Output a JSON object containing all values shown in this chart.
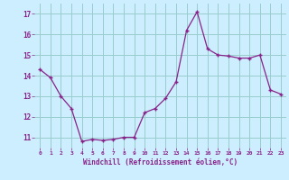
{
  "x": [
    0,
    1,
    2,
    3,
    4,
    5,
    6,
    7,
    8,
    9,
    10,
    11,
    12,
    13,
    14,
    15,
    16,
    17,
    18,
    19,
    20,
    21,
    22,
    23
  ],
  "y": [
    14.3,
    13.9,
    13.0,
    12.4,
    10.8,
    10.9,
    10.85,
    10.9,
    11.0,
    11.0,
    12.2,
    12.4,
    12.9,
    13.7,
    16.2,
    17.1,
    15.3,
    15.0,
    14.95,
    14.85,
    14.85,
    15.0,
    13.3,
    13.1
  ],
  "xlabel": "Windchill (Refroidissement éolien,°C)",
  "xlim": [
    -0.5,
    23.5
  ],
  "ylim": [
    10.5,
    17.5
  ],
  "yticks": [
    11,
    12,
    13,
    14,
    15,
    16,
    17
  ],
  "xticks": [
    0,
    1,
    2,
    3,
    4,
    5,
    6,
    7,
    8,
    9,
    10,
    11,
    12,
    13,
    14,
    15,
    16,
    17,
    18,
    19,
    20,
    21,
    22,
    23
  ],
  "line_color": "#882288",
  "marker_color": "#882288",
  "bg_color": "#cceeff",
  "grid_color": "#99cccc",
  "xlabel_color": "#882288",
  "tick_color": "#882288"
}
